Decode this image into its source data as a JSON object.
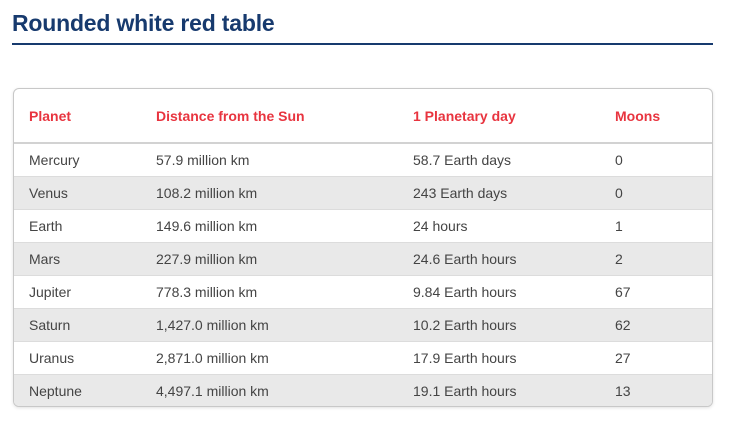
{
  "page": {
    "title": "Rounded white red table"
  },
  "table": {
    "headers": [
      "Planet",
      "Distance from the Sun",
      "1 Planetary day",
      "Moons"
    ],
    "rows": [
      [
        "Mercury",
        "57.9 million km",
        "58.7 Earth days",
        "0"
      ],
      [
        "Venus",
        "108.2 million km",
        "243 Earth days",
        "0"
      ],
      [
        "Earth",
        "149.6 million km",
        "24 hours",
        "1"
      ],
      [
        "Mars",
        "227.9 million km",
        "24.6 Earth hours",
        "2"
      ],
      [
        "Jupiter",
        "778.3 million km",
        "9.84 Earth hours",
        "67"
      ],
      [
        "Saturn",
        "1,427.0 million km",
        "10.2 Earth hours",
        "62"
      ],
      [
        "Uranus",
        "2,871.0 million km",
        "17.9 Earth hours",
        "27"
      ],
      [
        "Neptune",
        "4,497.1 million km",
        "19.1 Earth hours",
        "13"
      ]
    ]
  },
  "colors": {
    "title": "#173a6e",
    "header_text": "#e8343f",
    "stripe": "#e9e9e9"
  }
}
